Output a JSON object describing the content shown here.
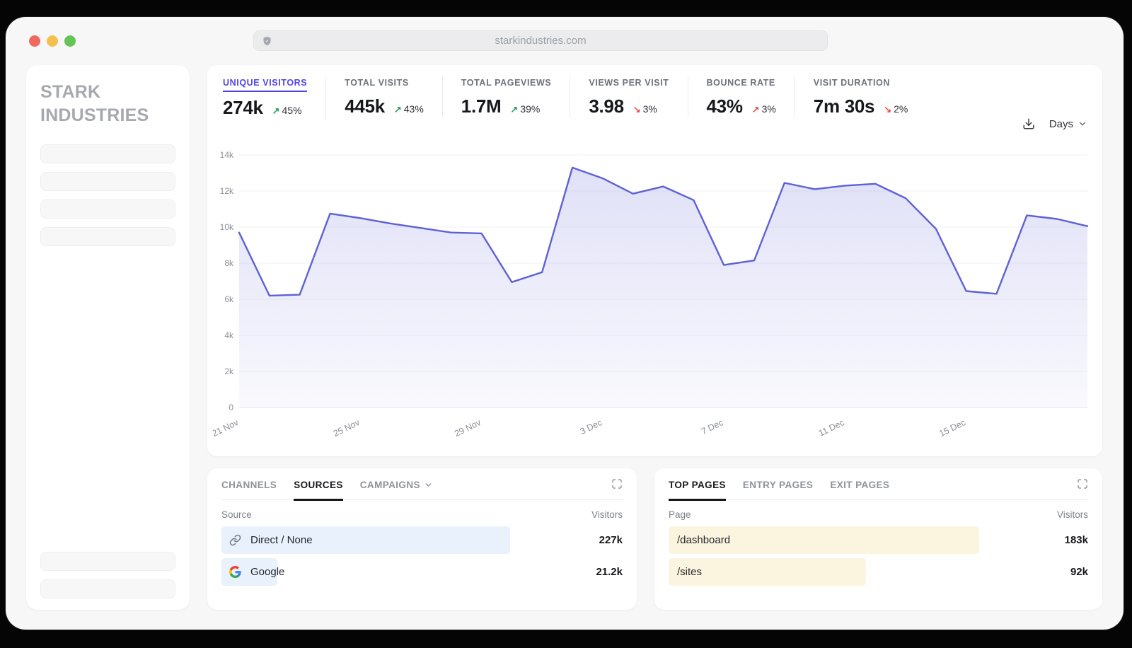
{
  "browser": {
    "url": "starkindustries.com"
  },
  "sidebar": {
    "logo": "STARK INDUSTRIES",
    "nav_placeholders": 4,
    "bottom_placeholders": 2
  },
  "metrics": [
    {
      "label": "UNIQUE VISITORS",
      "value": "274k",
      "delta": "45%",
      "direction": "up",
      "trend": "positive",
      "active": true
    },
    {
      "label": "TOTAL VISITS",
      "value": "445k",
      "delta": "43%",
      "direction": "up",
      "trend": "positive",
      "active": false
    },
    {
      "label": "TOTAL PAGEVIEWS",
      "value": "1.7M",
      "delta": "39%",
      "direction": "up",
      "trend": "positive",
      "active": false
    },
    {
      "label": "VIEWS PER VISIT",
      "value": "3.98",
      "delta": "3%",
      "direction": "down",
      "trend": "negative",
      "active": false
    },
    {
      "label": "BOUNCE RATE",
      "value": "43%",
      "delta": "3%",
      "direction": "up",
      "trend": "negative",
      "active": false
    },
    {
      "label": "VISIT DURATION",
      "value": "7m 30s",
      "delta": "2%",
      "direction": "down",
      "trend": "negative",
      "active": false
    }
  ],
  "controls": {
    "interval_label": "Days"
  },
  "chart_data": {
    "type": "area",
    "title": "Unique visitors over time",
    "x": [
      "21 Nov",
      "22 Nov",
      "23 Nov",
      "24 Nov",
      "25 Nov",
      "26 Nov",
      "27 Nov",
      "28 Nov",
      "29 Nov",
      "30 Nov",
      "1 Dec",
      "2 Dec",
      "3 Dec",
      "4 Dec",
      "5 Dec",
      "6 Dec",
      "7 Dec",
      "8 Dec",
      "9 Dec",
      "10 Dec",
      "11 Dec",
      "12 Dec",
      "13 Dec",
      "14 Dec",
      "15 Dec",
      "16 Dec",
      "17 Dec",
      "18 Dec",
      "19 Dec"
    ],
    "values": [
      9700,
      6200,
      6250,
      10750,
      10500,
      10200,
      9950,
      9700,
      9650,
      6950,
      7500,
      13300,
      12700,
      11850,
      12250,
      11500,
      7900,
      8150,
      12450,
      12100,
      12300,
      12400,
      11600,
      9900,
      6450,
      6300,
      10650,
      10450,
      10050
    ],
    "ylim": [
      0,
      14000
    ],
    "yticks": [
      {
        "value": 14000,
        "label": "14k"
      },
      {
        "value": 12000,
        "label": "12k"
      },
      {
        "value": 10000,
        "label": "10k"
      },
      {
        "value": 8000,
        "label": "8k"
      },
      {
        "value": 6000,
        "label": "6k"
      },
      {
        "value": 4000,
        "label": "4k"
      },
      {
        "value": 2000,
        "label": "2k"
      },
      {
        "value": 0,
        "label": "0"
      }
    ],
    "xtick_indices": [
      0,
      4,
      8,
      12,
      16,
      20,
      24
    ],
    "xtick_labels": [
      "21 Nov",
      "25 Nov",
      "29 Nov",
      "3 Dec",
      "7 Dec",
      "11 Dec",
      "15 Dec"
    ],
    "grid": true,
    "legend": false,
    "line_color": "#5d61d6",
    "fill_color": "#6467d9"
  },
  "sources_panel": {
    "tabs": [
      {
        "label": "CHANNELS",
        "active": false
      },
      {
        "label": "SOURCES",
        "active": true
      },
      {
        "label": "CAMPAIGNS",
        "active": false,
        "has_dropdown": true
      }
    ],
    "columns": {
      "left": "Source",
      "right": "Visitors"
    },
    "rows": [
      {
        "icon": "link-icon",
        "label": "Direct / None",
        "value": "227k",
        "bar_pct": 72,
        "bar_color": "#e9f1fc"
      },
      {
        "icon": "google-icon",
        "label": "Google",
        "value": "21.2k",
        "bar_pct": 14,
        "bar_color": "#e9f1fc"
      }
    ]
  },
  "pages_panel": {
    "tabs": [
      {
        "label": "TOP PAGES",
        "active": true
      },
      {
        "label": "ENTRY PAGES",
        "active": false
      },
      {
        "label": "EXIT PAGES",
        "active": false
      }
    ],
    "columns": {
      "left": "Page",
      "right": "Visitors"
    },
    "rows": [
      {
        "label": "/dashboard",
        "value": "183k",
        "bar_pct": 74,
        "bar_color": "#fbf4df"
      },
      {
        "label": "/sites",
        "value": "92k",
        "bar_pct": 47,
        "bar_color": "#fbf4df"
      }
    ]
  },
  "colors": {
    "positive": "#1fa35c",
    "negative": "#ee4b4b",
    "accent": "#4f46e5",
    "line": "#5d61d6",
    "window_bg": "#f7f7f8",
    "traffic_red": "#ee6a5e",
    "traffic_yellow": "#f5bf4f",
    "traffic_green": "#62c554",
    "source_bar": "#e9f1fc",
    "page_bar": "#fbf4df"
  }
}
